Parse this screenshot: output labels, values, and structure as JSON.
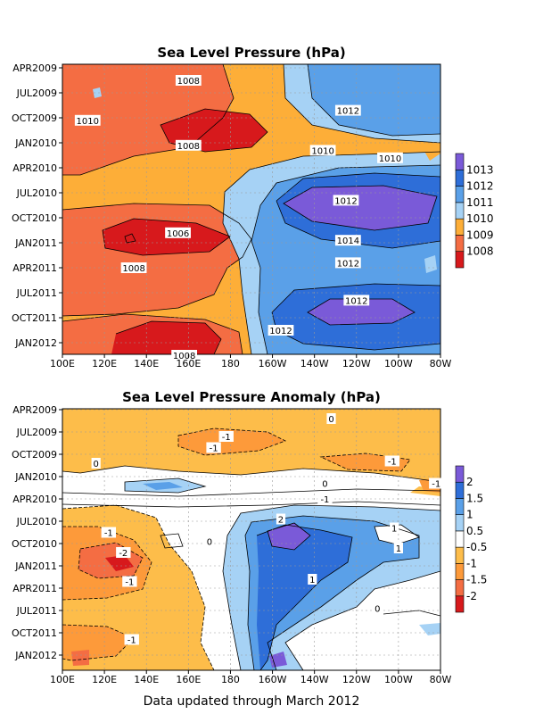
{
  "footer": "Data updated through March 2012",
  "chart_data": [
    {
      "type": "heatmap",
      "title": "Sea Level Pressure (hPa)",
      "xlabel": "",
      "ylabel": "",
      "x_ticks": [
        "100E",
        "120E",
        "140E",
        "160E",
        "180",
        "160W",
        "140W",
        "120W",
        "100W",
        "80W"
      ],
      "y_ticks": [
        "APR2009",
        "JUL2009",
        "OCT2009",
        "JAN2010",
        "APR2010",
        "JUL2010",
        "OCT2010",
        "JAN2011",
        "APR2011",
        "JUL2011",
        "OCT2011",
        "JAN2012"
      ],
      "grid": true,
      "legend": "right",
      "colorbar": {
        "labels": [
          "1008",
          "1009",
          "1010",
          "1011",
          "1012",
          "1013"
        ],
        "colors": [
          "#d7191c",
          "#f46d43",
          "#fdae38",
          "#a6d2f5",
          "#5aa0e8",
          "#2e6ed8",
          "#7a5ad8"
        ]
      },
      "contour_labels": [
        {
          "text": "1008",
          "lon": 160,
          "t": 0.5
        },
        {
          "text": "1008",
          "lon": 160,
          "t": 3.1
        },
        {
          "text": "1010",
          "lon": 112,
          "t": 2.1
        },
        {
          "text": "1012",
          "lon": -124,
          "t": 1.7
        },
        {
          "text": "1010",
          "lon": -136,
          "t": 3.3
        },
        {
          "text": "1010",
          "lon": -104,
          "t": 3.6
        },
        {
          "text": "1012",
          "lon": -125,
          "t": 5.3
        },
        {
          "text": "1014",
          "lon": -124,
          "t": 6.9
        },
        {
          "text": "1006",
          "lon": 155,
          "t": 6.6
        },
        {
          "text": "1008",
          "lon": 134,
          "t": 8.0
        },
        {
          "text": "1012",
          "lon": -124,
          "t": 7.8
        },
        {
          "text": "1012",
          "lon": -120,
          "t": 9.3
        },
        {
          "text": "1012",
          "lon": -156,
          "t": 10.5
        },
        {
          "text": "1008",
          "lon": 158,
          "t": 11.5
        }
      ]
    },
    {
      "type": "heatmap",
      "title": "Sea Level Pressure Anomaly (hPa)",
      "xlabel": "",
      "ylabel": "",
      "x_ticks": [
        "100E",
        "120E",
        "140E",
        "160E",
        "180",
        "160W",
        "140W",
        "120W",
        "100W",
        "80W"
      ],
      "y_ticks": [
        "APR2009",
        "JUL2009",
        "OCT2009",
        "JAN2010",
        "APR2010",
        "JUL2010",
        "OCT2010",
        "JAN2011",
        "APR2011",
        "JUL2011",
        "OCT2011",
        "JAN2012"
      ],
      "grid": true,
      "legend": "right",
      "colorbar": {
        "labels": [
          "-2",
          "-1.5",
          "-1",
          "-0.5",
          "0.5",
          "1",
          "1.5",
          "2"
        ],
        "colors": [
          "#d7191c",
          "#f46d43",
          "#fd9a3a",
          "#fdbd4a",
          "#ffffff",
          "#a6d2f5",
          "#5aa0e8",
          "#2e6ed8",
          "#7a5ad8"
        ]
      },
      "contour_labels": [
        {
          "text": "0",
          "lon": -132,
          "t": 0.4
        },
        {
          "text": "-1",
          "lon": 178,
          "t": 1.2
        },
        {
          "text": "-1",
          "lon": 172,
          "t": 1.7
        },
        {
          "text": "0",
          "lon": 116,
          "t": 2.4
        },
        {
          "text": "-1",
          "lon": -103,
          "t": 2.3
        },
        {
          "text": "-1",
          "lon": -82,
          "t": 3.3
        },
        {
          "text": "0",
          "lon": -135,
          "t": 3.3
        },
        {
          "text": "-1",
          "lon": -135,
          "t": 4.0
        },
        {
          "text": "2",
          "lon": -156,
          "t": 4.9
        },
        {
          "text": "-1",
          "lon": 122,
          "t": 5.5
        },
        {
          "text": "0",
          "lon": 170,
          "t": 5.9
        },
        {
          "text": "1",
          "lon": -102,
          "t": 5.3
        },
        {
          "text": "1",
          "lon": -100,
          "t": 6.2
        },
        {
          "text": "-2",
          "lon": 129,
          "t": 6.4
        },
        {
          "text": "-1",
          "lon": 132,
          "t": 7.7
        },
        {
          "text": "1",
          "lon": -141,
          "t": 7.6
        },
        {
          "text": "0",
          "lon": -110,
          "t": 8.9
        },
        {
          "text": "-1",
          "lon": 133,
          "t": 10.3
        }
      ]
    }
  ]
}
